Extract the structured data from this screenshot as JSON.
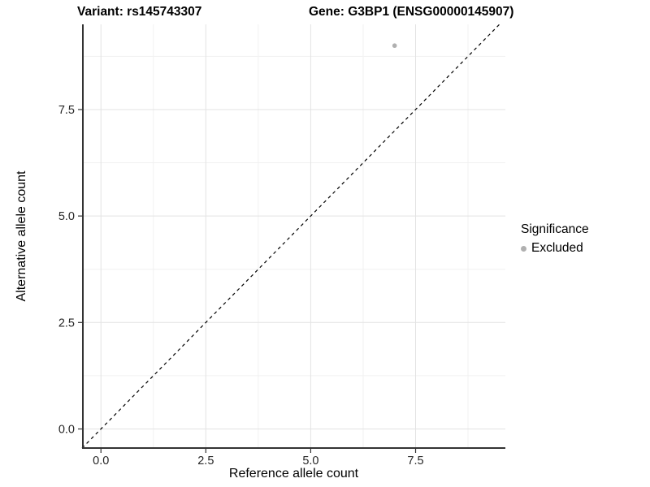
{
  "titles": {
    "variant": "Variant: rs145743307",
    "gene": "Gene: G3BP1 (ENSG00000145907)"
  },
  "axes": {
    "x": {
      "label": "Reference allele count",
      "tick_labels": [
        "0.0",
        "2.5",
        "5.0",
        "7.5"
      ]
    },
    "y": {
      "label": "Alternative allele count",
      "tick_labels": [
        "0.0",
        "2.5",
        "5.0",
        "7.5"
      ]
    }
  },
  "legend": {
    "title": "Significance",
    "items": [
      {
        "label": "Excluded",
        "color": "#b0b0b0"
      }
    ]
  },
  "chart_data": {
    "type": "scatter",
    "title": "Variant: rs145743307 — Gene: G3BP1 (ENSG00000145907)",
    "xlabel": "Reference allele count",
    "ylabel": "Alternative allele count",
    "xlim": [
      -0.45,
      9.64
    ],
    "ylim": [
      -0.467,
      9.5
    ],
    "x_ticks": [
      0,
      2.5,
      5,
      7.5
    ],
    "y_ticks": [
      0,
      2.5,
      5,
      7.5
    ],
    "x_minor_ticks": [
      1.25,
      3.75,
      6.25,
      8.75
    ],
    "y_minor_ticks": [
      1.25,
      3.75,
      6.25,
      8.75
    ],
    "grid": true,
    "legend_position": "right",
    "series": [
      {
        "name": "Excluded",
        "color": "#b0b0b0",
        "points": [
          {
            "x": 7,
            "y": 9
          }
        ]
      }
    ],
    "reference_line": {
      "type": "identity",
      "equation": "y = x",
      "style": "dashed",
      "color": "#000000"
    },
    "style": {
      "background": "#ffffff",
      "axis_line_color": "#333333",
      "major_grid_color": "#e3e3e3",
      "minor_grid_color": "#f1f1f1",
      "tick_color": "#333333",
      "tick_label_color": "#262626",
      "point_color": "#b0b0b0"
    }
  }
}
